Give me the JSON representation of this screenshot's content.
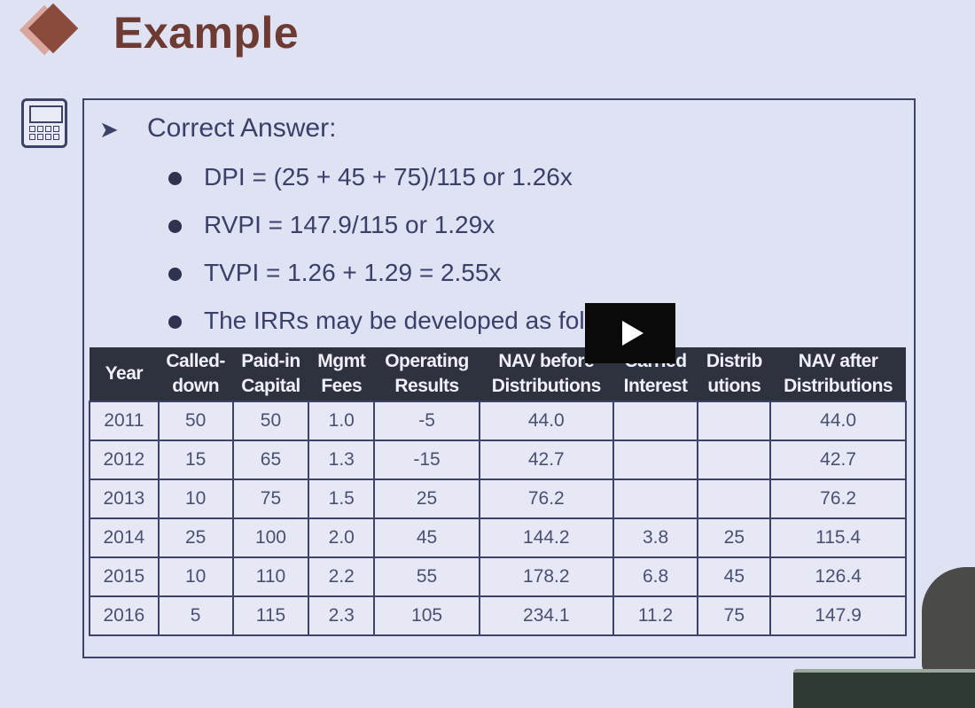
{
  "slide": {
    "title": "Example",
    "heading": "Correct Answer:",
    "bullets": [
      "DPI = (25 + 45 + 75)/115 or 1.26x",
      "RVPI = 147.9/115 or 1.29x",
      "TVPI = 1.26 + 1.29 = 2.55x",
      "The IRRs may be developed as follows:"
    ]
  },
  "table": {
    "headers": [
      [
        "Year",
        ""
      ],
      [
        "Called-",
        "down"
      ],
      [
        "Paid-in",
        "Capital"
      ],
      [
        "Mgmt",
        "Fees"
      ],
      [
        "Operating",
        "Results"
      ],
      [
        "NAV before",
        "Distributions"
      ],
      [
        "Carried",
        "Interest"
      ],
      [
        "Distrib",
        "utions"
      ],
      [
        "NAV after",
        "Distributions"
      ]
    ],
    "rows": [
      [
        "2011",
        "50",
        "50",
        "1.0",
        "-5",
        "44.0",
        "",
        "",
        "44.0"
      ],
      [
        "2012",
        "15",
        "65",
        "1.3",
        "-15",
        "42.7",
        "",
        "",
        "42.7"
      ],
      [
        "2013",
        "10",
        "75",
        "1.5",
        "25",
        "76.2",
        "",
        "",
        "76.2"
      ],
      [
        "2014",
        "25",
        "100",
        "2.0",
        "45",
        "144.2",
        "3.8",
        "25",
        "115.4"
      ],
      [
        "2015",
        "10",
        "110",
        "2.2",
        "55",
        "178.2",
        "6.8",
        "45",
        "126.4"
      ],
      [
        "2016",
        "5",
        "115",
        "2.3",
        "105",
        "234.1",
        "11.2",
        "75",
        "147.9"
      ]
    ]
  },
  "player": {
    "icon": "play-icon"
  },
  "colors": {
    "title": "#6e3b34",
    "header_bg": "#2e323f",
    "background": "#dfe2f3"
  }
}
